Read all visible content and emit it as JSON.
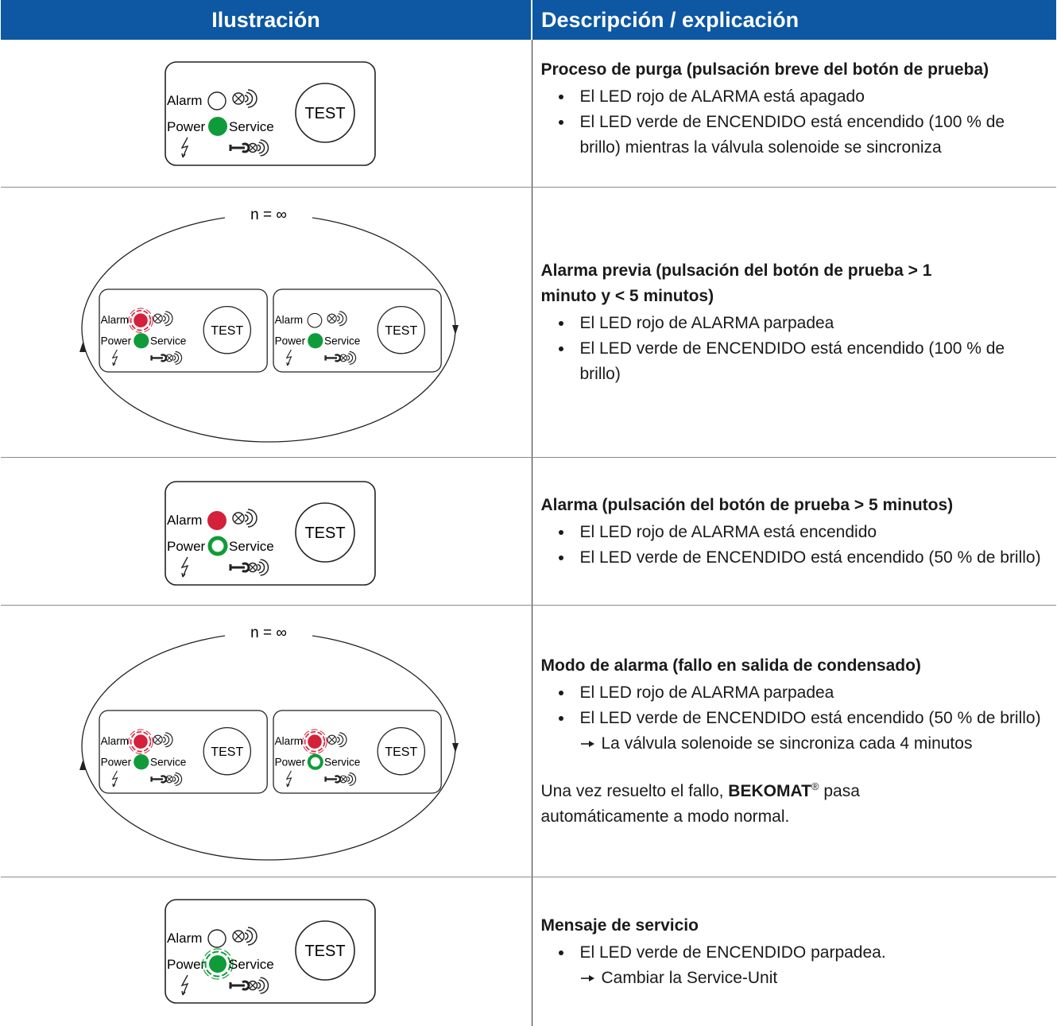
{
  "table": {
    "headers": [
      "Ilustración",
      "Descripción / explicación"
    ],
    "rows": [
      {
        "title": "Proceso de purga (pulsación breve del botón de prueba)",
        "bullets": [
          "El LED rojo de ALARMA está apagado",
          "El LED verde de ENCENDIDO está encendido (100 % de brillo) mientras la válvula solenoide se sincroniza"
        ]
      },
      {
        "title": "Alarma previa (pulsación del botón de prueba > 1 minuto y < 5 minutos)",
        "bullets": [
          "El LED rojo de ALARMA parpadea",
          "El LED verde de ENCENDIDO está encendido (100 % de brillo)"
        ]
      },
      {
        "title": "Alarma (pulsación del botón de prueba > 5 minutos)",
        "bullets": [
          "El LED rojo de ALARMA está encendido",
          "El LED verde de ENCENDIDO está encendido (50 % de brillo)"
        ]
      },
      {
        "title": "Modo de alarma (fallo en salida de condensado)",
        "bullets": [
          "El LED rojo de ALARMA parpadea",
          "El LED verde de ENCENDIDO está encendido (50 % de brillo)"
        ],
        "sub": "La válvula solenoide se sincroniza cada 4 minutos",
        "note": {
          "before": "Una vez resuelto el fallo, ",
          "brand": "BEKOMAT",
          "reg": "®",
          "after": " pasa automáticamente a modo normal."
        }
      },
      {
        "title": "Mensaje de servicio",
        "bullets": [
          "El LED verde de ENCENDIDO parpadea."
        ],
        "sub": "Cambiar la Service-Unit"
      }
    ]
  },
  "panel_labels": {
    "alarm": "Alarm",
    "power": "Power",
    "service": "Service",
    "test": "TEST"
  },
  "cycle_label": "n = ∞"
}
